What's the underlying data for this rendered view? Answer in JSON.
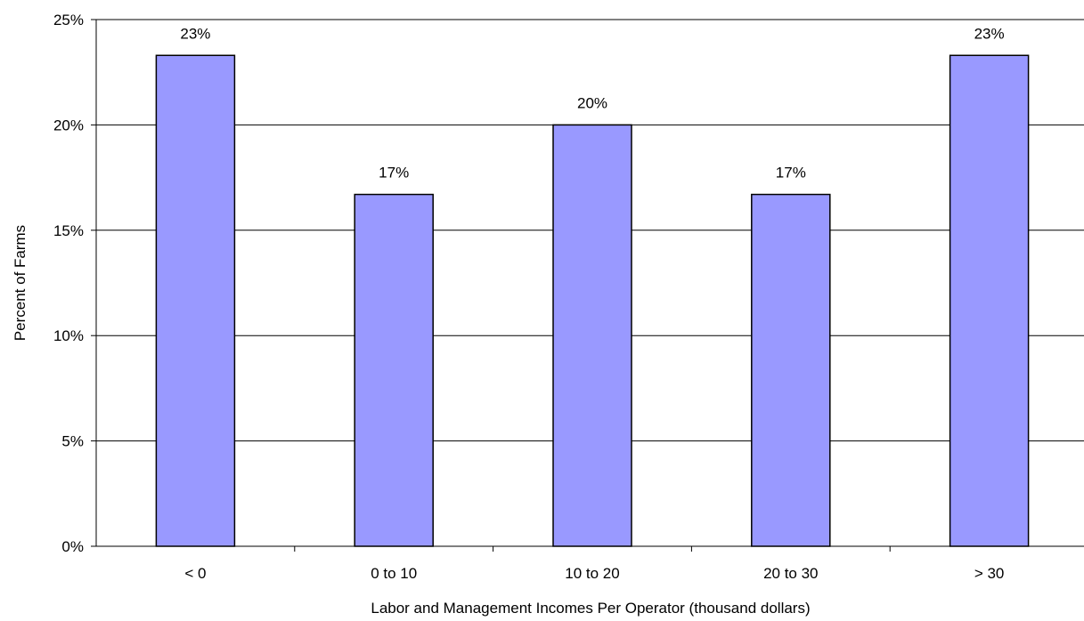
{
  "chart_data": {
    "type": "bar",
    "categories": [
      "< 0",
      "0 to 10",
      "10 to 20",
      "20 to 30",
      "> 30"
    ],
    "values": [
      23.3,
      16.7,
      20.0,
      16.7,
      23.3
    ],
    "data_labels": [
      "23%",
      "17%",
      "20%",
      "17%",
      "23%"
    ],
    "title": "",
    "xlabel": "Labor and Management Incomes Per Operator (thousand dollars)",
    "ylabel": "Percent of Farms",
    "ylim": [
      0,
      25
    ],
    "yticks": [
      0,
      5,
      10,
      15,
      20,
      25
    ],
    "ytick_labels": [
      "0%",
      "5%",
      "10%",
      "15%",
      "20%",
      "25%"
    ],
    "grid": true,
    "legend": "none",
    "bar_color": "#9999ff",
    "bar_edge_color": "#000000"
  }
}
